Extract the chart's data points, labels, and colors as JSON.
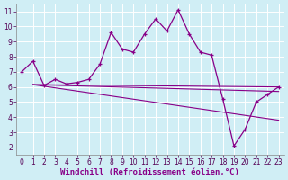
{
  "xlabel": "Windchill (Refroidissement éolien,°C)",
  "bg_color": "#d0eef5",
  "grid_color": "#b8dde8",
  "line_color": "#880088",
  "xlim": [
    -0.5,
    23.5
  ],
  "ylim": [
    1.5,
    11.5
  ],
  "yticks": [
    2,
    3,
    4,
    5,
    6,
    7,
    8,
    9,
    10,
    11
  ],
  "xticks": [
    0,
    1,
    2,
    3,
    4,
    5,
    6,
    7,
    8,
    9,
    10,
    11,
    12,
    13,
    14,
    15,
    16,
    17,
    18,
    19,
    20,
    21,
    22,
    23
  ],
  "main_x": [
    0,
    1,
    2,
    3,
    4,
    5,
    6,
    7,
    8,
    9,
    10,
    11,
    12,
    13,
    14,
    15,
    16,
    17,
    18,
    19,
    20,
    21,
    22,
    23
  ],
  "main_y": [
    7.0,
    7.7,
    6.1,
    6.5,
    6.2,
    6.3,
    6.5,
    7.5,
    9.6,
    8.5,
    8.3,
    9.5,
    10.5,
    9.7,
    11.1,
    9.5,
    8.3,
    8.1,
    5.2,
    2.1,
    3.2,
    5.0,
    5.5,
    6.0
  ],
  "line1_x": [
    1,
    23
  ],
  "line1_y": [
    6.15,
    6.0
  ],
  "line2_x": [
    1,
    23
  ],
  "line2_y": [
    6.15,
    5.7
  ],
  "line3_x": [
    1,
    23
  ],
  "line3_y": [
    6.15,
    3.8
  ],
  "xlabel_fontsize": 6.5,
  "tick_fontsize": 5.5
}
